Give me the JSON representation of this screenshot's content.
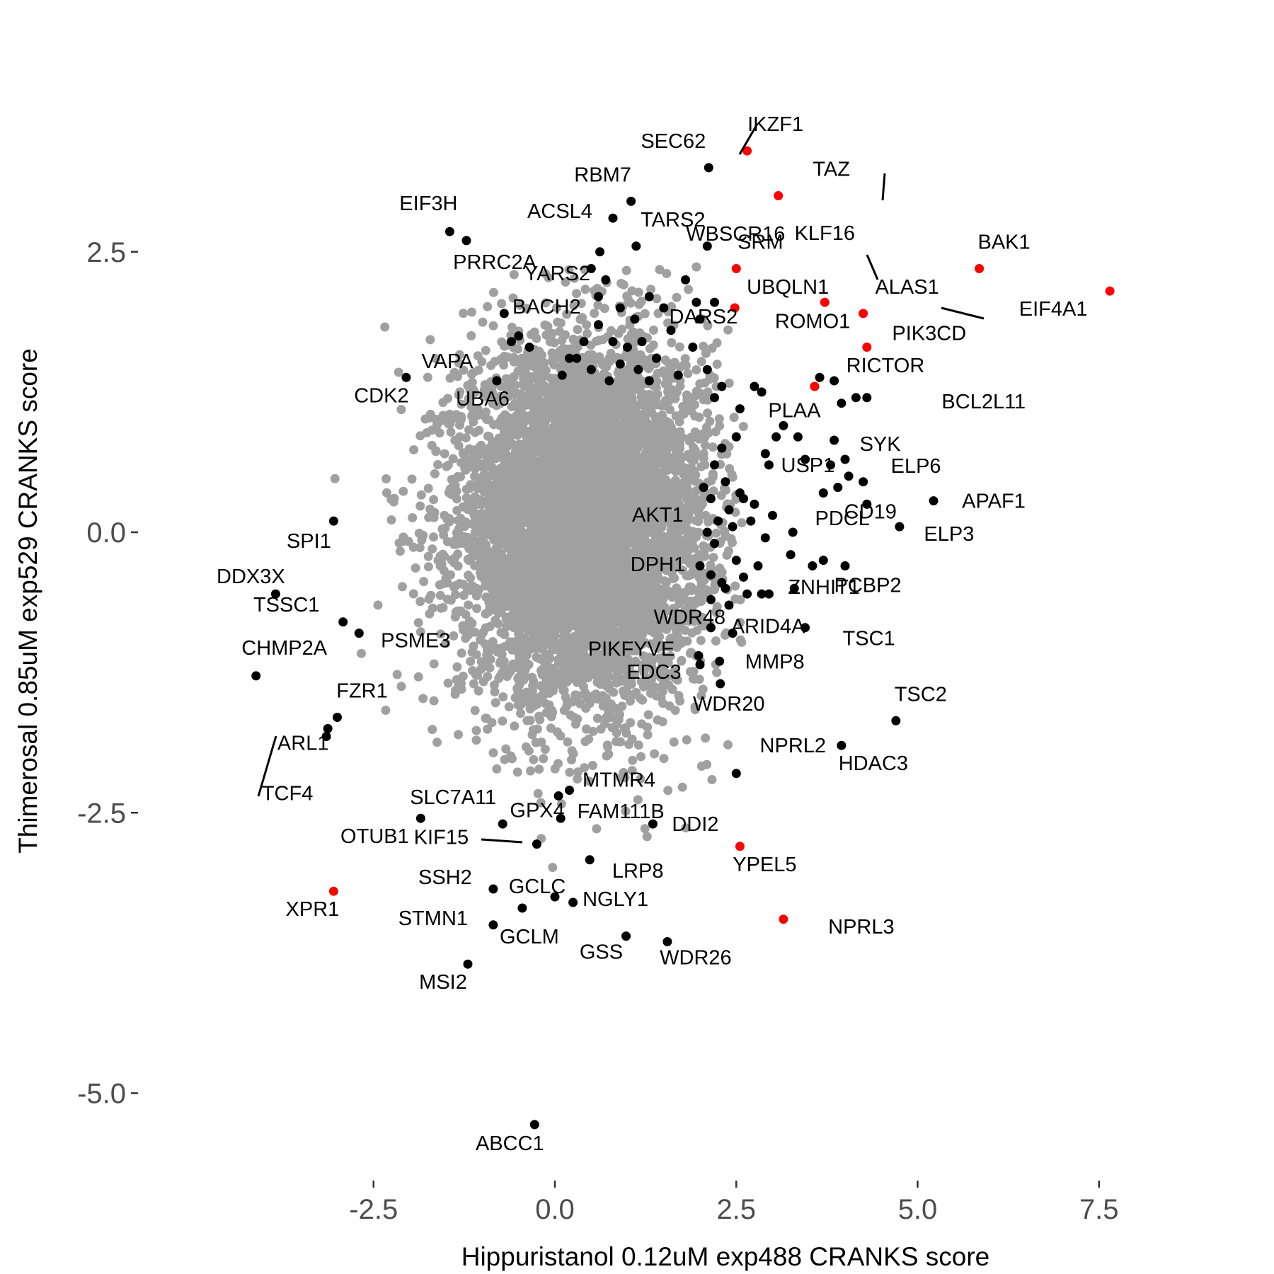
{
  "chart_data": {
    "type": "scatter",
    "title": "",
    "xlabel": "Hippuristanol 0.12uM exp488 CRANKS score",
    "ylabel": "Thimerosal 0.85uM exp529 CRANKS score",
    "xlim": [
      -4.3,
      7.9
    ],
    "ylim": [
      -5.7,
      3.7
    ],
    "x_ticks": [
      -2.5,
      0.0,
      2.5,
      5.0,
      7.5
    ],
    "x_tick_labels": [
      "-2.5",
      "0.0",
      "2.5",
      "5.0",
      "7.5"
    ],
    "y_ticks": [
      2.5,
      0.0,
      -2.5,
      -5.0
    ],
    "y_tick_labels": [
      "2.5",
      "0.0",
      "-2.5",
      "-5.0"
    ],
    "grid": false,
    "legend": "none",
    "colors": {
      "background_points": "#a0a0a0",
      "significant": "#000000",
      "highlighted": "#ff0000"
    },
    "background_cloud": {
      "center": [
        0.4,
        0.1
      ],
      "spread": [
        0.85,
        0.8
      ],
      "count": 6500,
      "color": "#a0a0a0"
    },
    "labeled_points": [
      {
        "label": "IKZF1",
        "x": 2.65,
        "y": 3.4,
        "color": "red"
      },
      {
        "label": "SEC62",
        "x": 2.12,
        "y": 3.25,
        "color": "black"
      },
      {
        "label": "TAZ",
        "x": 3.08,
        "y": 3.0,
        "color": "red"
      },
      {
        "label": "RBM7",
        "x": 1.05,
        "y": 2.95,
        "color": "black"
      },
      {
        "label": "WBSCR16",
        "x": 2.1,
        "y": 2.55,
        "color": "black"
      },
      {
        "label": "EIF3H",
        "x": -1.45,
        "y": 2.68,
        "color": "black"
      },
      {
        "label": "ACSL4",
        "x": 0.8,
        "y": 2.8,
        "color": "black"
      },
      {
        "label": "TARS2",
        "x": 1.12,
        "y": 2.55,
        "color": "black"
      },
      {
        "label": "SRM",
        "x": 2.5,
        "y": 2.35,
        "color": "red"
      },
      {
        "label": "KLF16",
        "x": 3.72,
        "y": 2.05,
        "color": "red"
      },
      {
        "label": "BAK1",
        "x": 5.85,
        "y": 2.35,
        "color": "red"
      },
      {
        "label": "PRRC2A",
        "x": -1.22,
        "y": 2.6,
        "color": "black"
      },
      {
        "label": "YARS2",
        "x": 0.62,
        "y": 2.5,
        "color": "black"
      },
      {
        "label": "DARS2",
        "x": 1.95,
        "y": 2.05,
        "color": "black"
      },
      {
        "label": "UBQLN1",
        "x": 2.48,
        "y": 2.0,
        "color": "red"
      },
      {
        "label": "ALAS1",
        "x": 4.25,
        "y": 1.95,
        "color": "red"
      },
      {
        "label": "EIF4A1",
        "x": 7.65,
        "y": 2.15,
        "color": "red"
      },
      {
        "label": "BACH2",
        "x": -0.7,
        "y": 1.95,
        "color": "black"
      },
      {
        "label": "PIK3CD",
        "x": 4.3,
        "y": 1.65,
        "color": "red"
      },
      {
        "label": "ROMO1",
        "x": 3.65,
        "y": 1.38,
        "color": "black"
      },
      {
        "label": "VAPA",
        "x": -0.8,
        "y": 1.35,
        "color": "black"
      },
      {
        "label": "CDK2",
        "x": -2.05,
        "y": 1.38,
        "color": "black"
      },
      {
        "label": "RICTOR",
        "x": 3.58,
        "y": 1.3,
        "color": "red"
      },
      {
        "label": "UBA6",
        "x": -0.8,
        "y": 1.35,
        "color": "black"
      },
      {
        "label": "BCL2L11",
        "x": 4.3,
        "y": 1.2,
        "color": "black"
      },
      {
        "label": "PLAA",
        "x": 3.35,
        "y": 0.85,
        "color": "black"
      },
      {
        "label": "SYK",
        "x": 3.85,
        "y": 0.82,
        "color": "black"
      },
      {
        "label": "USP1",
        "x": 2.95,
        "y": 0.6,
        "color": "black"
      },
      {
        "label": "ELP6",
        "x": 4.05,
        "y": 0.5,
        "color": "black"
      },
      {
        "label": "APAF1",
        "x": 5.22,
        "y": 0.28,
        "color": "black"
      },
      {
        "label": "SPI1",
        "x": -3.05,
        "y": 0.1,
        "color": "black"
      },
      {
        "label": "CD19",
        "x": 4.3,
        "y": 0.25,
        "color": "black"
      },
      {
        "label": "ELP3",
        "x": 4.75,
        "y": 0.05,
        "color": "black"
      },
      {
        "label": "PCBP2",
        "x": 4.0,
        "y": -0.3,
        "color": "black"
      },
      {
        "label": "AKT1",
        "x": 2.1,
        "y": 0.0,
        "color": "black"
      },
      {
        "label": "PDCL",
        "x": 3.28,
        "y": 0.0,
        "color": "black"
      },
      {
        "label": "DDX3X",
        "x": -3.85,
        "y": -0.55,
        "color": "black"
      },
      {
        "label": "DPH1",
        "x": 2.15,
        "y": -0.38,
        "color": "black"
      },
      {
        "label": "ZNHIT1",
        "x": 2.85,
        "y": -0.55,
        "color": "black"
      },
      {
        "label": "TSSC1",
        "x": -2.92,
        "y": -0.8,
        "color": "black"
      },
      {
        "label": "WDR48",
        "x": 2.15,
        "y": -0.85,
        "color": "black"
      },
      {
        "label": "ARID4A",
        "x": 2.45,
        "y": -0.9,
        "color": "black"
      },
      {
        "label": "TSC1",
        "x": 3.45,
        "y": -0.85,
        "color": "black"
      },
      {
        "label": "PIKFYVE",
        "x": 1.98,
        "y": -1.1,
        "color": "black"
      },
      {
        "label": "CHMP2A",
        "x": -4.12,
        "y": -1.28,
        "color": "black"
      },
      {
        "label": "PSME3",
        "x": -2.7,
        "y": -0.9,
        "color": "black"
      },
      {
        "label": "MMP8",
        "x": 2.27,
        "y": -1.15,
        "color": "black"
      },
      {
        "label": "EDC3",
        "x": 2.0,
        "y": -1.18,
        "color": "black"
      },
      {
        "label": "WDR20",
        "x": 2.28,
        "y": -1.35,
        "color": "black"
      },
      {
        "label": "FZR1",
        "x": -3.0,
        "y": -1.65,
        "color": "black"
      },
      {
        "label": "TSC2",
        "x": 4.7,
        "y": -1.68,
        "color": "black"
      },
      {
        "label": "ARL1",
        "x": -3.13,
        "y": -1.75,
        "color": "black"
      },
      {
        "label": "NPRL2",
        "x": 2.5,
        "y": -2.15,
        "color": "black"
      },
      {
        "label": "HDAC3",
        "x": 3.95,
        "y": -1.9,
        "color": "black"
      },
      {
        "label": "GPX4",
        "x": 0.05,
        "y": -2.35,
        "color": "black"
      },
      {
        "label": "TCF4",
        "x": -3.15,
        "y": -1.82,
        "color": "black"
      },
      {
        "label": "MTMR4",
        "x": 0.2,
        "y": -2.3,
        "color": "black"
      },
      {
        "label": "SLC7A11",
        "x": -0.72,
        "y": -2.6,
        "color": "black"
      },
      {
        "label": "OTUB1",
        "x": -1.85,
        "y": -2.55,
        "color": "black"
      },
      {
        "label": "FAM111B",
        "x": 0.08,
        "y": -2.55,
        "color": "black"
      },
      {
        "label": "DDI2",
        "x": 1.35,
        "y": -2.6,
        "color": "black"
      },
      {
        "label": "KIF15",
        "x": -0.25,
        "y": -2.78,
        "color": "black"
      },
      {
        "label": "YPEL5",
        "x": 2.55,
        "y": -2.8,
        "color": "red"
      },
      {
        "label": "LRP8",
        "x": 0.48,
        "y": -2.92,
        "color": "black"
      },
      {
        "label": "SSH2",
        "x": -0.85,
        "y": -3.18,
        "color": "black"
      },
      {
        "label": "GCLC",
        "x": 0.0,
        "y": -3.25,
        "color": "black"
      },
      {
        "label": "XPR1",
        "x": -3.05,
        "y": -3.2,
        "color": "red"
      },
      {
        "label": "NGLY1",
        "x": 0.25,
        "y": -3.3,
        "color": "black"
      },
      {
        "label": "STMN1",
        "x": -0.85,
        "y": -3.5,
        "color": "black"
      },
      {
        "label": "NPRL3",
        "x": 3.15,
        "y": -3.45,
        "color": "red"
      },
      {
        "label": "GCLM",
        "x": -0.45,
        "y": -3.35,
        "color": "black"
      },
      {
        "label": "GSS",
        "x": 0.98,
        "y": -3.6,
        "color": "black"
      },
      {
        "label": "WDR26",
        "x": 1.55,
        "y": -3.65,
        "color": "black"
      },
      {
        "label": "MSI2",
        "x": -1.2,
        "y": -3.85,
        "color": "black"
      },
      {
        "label": "ABCC1",
        "x": -0.28,
        "y": -5.28,
        "color": "black"
      }
    ],
    "unlabeled_black_points": [
      [
        1.8,
        2.25
      ],
      [
        2.2,
        2.05
      ],
      [
        0.6,
        2.1
      ],
      [
        0.5,
        2.35
      ],
      [
        0.7,
        2.25
      ],
      [
        0.9,
        2.0
      ],
      [
        1.3,
        2.1
      ],
      [
        1.1,
        1.9
      ],
      [
        1.5,
        2.0
      ],
      [
        1.6,
        1.8
      ],
      [
        0.4,
        1.7
      ],
      [
        0.6,
        1.85
      ],
      [
        1.2,
        1.7
      ],
      [
        1.0,
        1.65
      ],
      [
        0.8,
        1.7
      ],
      [
        1.4,
        1.55
      ],
      [
        1.9,
        1.65
      ],
      [
        2.0,
        1.9
      ],
      [
        0.3,
        1.55
      ],
      [
        0.5,
        1.45
      ],
      [
        0.9,
        1.5
      ],
      [
        1.15,
        1.45
      ],
      [
        1.7,
        1.4
      ],
      [
        0.1,
        1.4
      ],
      [
        0.2,
        1.55
      ],
      [
        0.75,
        1.35
      ],
      [
        1.3,
        1.35
      ],
      [
        -0.5,
        1.75
      ],
      [
        -0.35,
        1.65
      ],
      [
        -0.6,
        1.7
      ],
      [
        2.1,
        1.45
      ],
      [
        2.2,
        1.2
      ],
      [
        2.3,
        1.3
      ],
      [
        2.55,
        1.1
      ],
      [
        2.75,
        1.3
      ],
      [
        2.85,
        1.25
      ],
      [
        2.5,
        0.85
      ],
      [
        2.3,
        0.75
      ],
      [
        2.9,
        0.7
      ],
      [
        3.05,
        0.85
      ],
      [
        3.15,
        0.95
      ],
      [
        2.2,
        0.6
      ],
      [
        2.35,
        0.45
      ],
      [
        2.55,
        0.35
      ],
      [
        2.15,
        0.3
      ],
      [
        2.4,
        0.2
      ],
      [
        2.6,
        0.3
      ],
      [
        2.75,
        0.25
      ],
      [
        2.45,
        0.05
      ],
      [
        2.7,
        0.1
      ],
      [
        2.9,
        -0.05
      ],
      [
        3.0,
        0.15
      ],
      [
        2.2,
        -0.1
      ],
      [
        2.5,
        -0.25
      ],
      [
        2.3,
        -0.45
      ],
      [
        2.6,
        -0.4
      ],
      [
        2.8,
        -0.3
      ],
      [
        2.15,
        -0.6
      ],
      [
        2.4,
        -0.65
      ],
      [
        2.65,
        -0.55
      ],
      [
        3.3,
        -0.5
      ],
      [
        3.25,
        -0.2
      ],
      [
        3.55,
        -0.3
      ],
      [
        3.7,
        -0.25
      ],
      [
        3.85,
        1.35
      ],
      [
        4.15,
        1.2
      ],
      [
        3.95,
        1.15
      ],
      [
        4.0,
        0.65
      ],
      [
        4.25,
        0.45
      ],
      [
        3.8,
        0.6
      ],
      [
        3.7,
        0.35
      ],
      [
        3.9,
        0.4
      ],
      [
        2.05,
        0.4
      ],
      [
        2.25,
        0.1
      ],
      [
        2.0,
        -0.3
      ],
      [
        3.45,
        0.65
      ],
      [
        2.95,
        -0.55
      ],
      [
        2.35,
        -0.5
      ]
    ]
  }
}
